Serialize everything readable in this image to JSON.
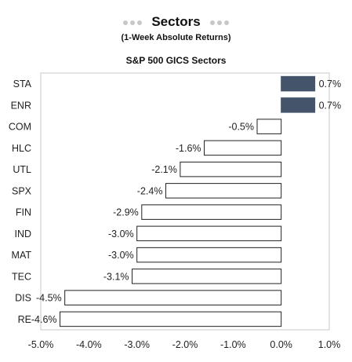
{
  "header": {
    "title": "Sectors",
    "subtitle": "(1-Week Absolute Returns)",
    "dots_left": "●●●",
    "dots_right": "●●●"
  },
  "chart_data": {
    "type": "bar",
    "orientation": "horizontal",
    "title": "S&P 500 GICS Sectors",
    "categories": [
      "STA",
      "ENR",
      "COM",
      "HLC",
      "UTL",
      "SPX",
      "FIN",
      "IND",
      "MAT",
      "TEC",
      "DIS",
      "RE"
    ],
    "values": [
      0.7,
      0.7,
      -0.5,
      -1.6,
      -2.1,
      -2.4,
      -2.9,
      -3.0,
      -3.0,
      -3.1,
      -4.5,
      -4.6
    ],
    "value_labels": [
      "0.7%",
      "0.7%",
      "-0.5%",
      "-1.6%",
      "-2.1%",
      "-2.4%",
      "-2.9%",
      "-3.0%",
      "-3.0%",
      "-3.1%",
      "-4.5%",
      "-4.6%"
    ],
    "xlim": [
      -5.0,
      1.0
    ],
    "xticks": [
      -5.0,
      -4.0,
      -3.0,
      -2.0,
      -1.0,
      0.0,
      1.0
    ],
    "xtick_labels": [
      "-5.0%",
      "-4.0%",
      "-3.0%",
      "-2.0%",
      "-1.0%",
      "0.0%",
      "1.0%"
    ],
    "xlabel": "",
    "ylabel": "",
    "grid": false,
    "legend": "none",
    "colors": {
      "positive_fill": "#44546a",
      "negative_fill": "#ffffff",
      "bar_stroke": "#222222",
      "plot_border": "#c8c8c8"
    }
  }
}
